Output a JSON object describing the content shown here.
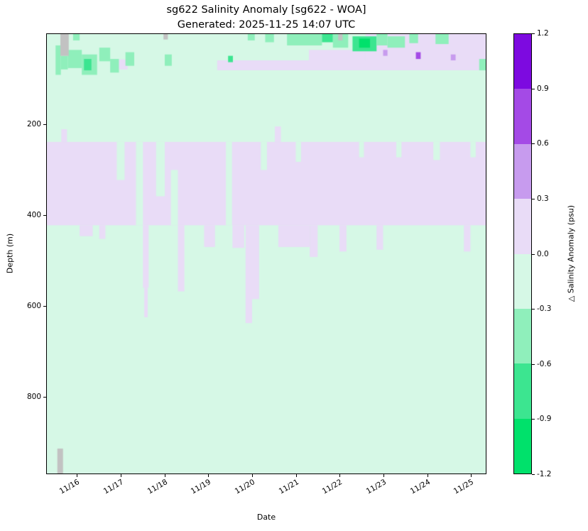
{
  "chart_data": {
    "type": "heatmap",
    "title": "sg622 Salinity Anomaly [sg622 - WOA]",
    "subtitle": "Generated: 2025-11-25 14:07 UTC",
    "xlabel": "Date",
    "ylabel": "Depth (m)",
    "colorbar_label": "△ Salinity Anomaly (psu)",
    "x_tick_labels": [
      "11/16",
      "11/17",
      "11/18",
      "11/19",
      "11/20",
      "11/21",
      "11/22",
      "11/23",
      "11/24",
      "11/25"
    ],
    "x_tick_days": [
      16,
      17,
      18,
      19,
      20,
      21,
      22,
      23,
      24,
      25
    ],
    "x_range": [
      15.3,
      25.35
    ],
    "y_ticks": [
      "200",
      "400",
      "600",
      "800"
    ],
    "depth_range": [
      0,
      970
    ],
    "grid": false,
    "legend_position": "colorbar-right",
    "colorbar_ticks": [
      "1.2",
      "0.9",
      "0.6",
      "0.3",
      "0.0",
      "-0.3",
      "-0.6",
      "-0.9",
      "-1.2"
    ],
    "color_levels": [
      -1.2,
      -0.9,
      -0.6,
      -0.3,
      0,
      0.3,
      0.6,
      0.9,
      1.2
    ],
    "colors": {
      "scale_low_to_high": [
        "#00e16b",
        "#3ce590",
        "#8fefbb",
        "#d6f8e6",
        "#e9dcf7",
        "#c79bee",
        "#a44ae6",
        "#7d0ae0"
      ],
      "missing": "#c2c2c2",
      "spine": "#000000",
      "background": "#ffffff"
    },
    "background_value": -0.1,
    "regions": [
      {
        "x": [
          15.3,
          25.35
        ],
        "d": [
          238,
          422
        ],
        "v": 0.15
      },
      {
        "x": [
          15.63,
          15.76
        ],
        "d": [
          210,
          238
        ],
        "v": 0.15
      },
      {
        "x": [
          20.52,
          20.66
        ],
        "d": [
          204,
          238
        ],
        "v": 0.15
      },
      {
        "x": [
          16.05,
          16.35
        ],
        "d": [
          422,
          446
        ],
        "v": 0.15
      },
      {
        "x": [
          16.5,
          16.64
        ],
        "d": [
          422,
          452
        ],
        "v": 0.15
      },
      {
        "x": [
          17.5,
          17.63
        ],
        "d": [
          422,
          560
        ],
        "v": 0.15
      },
      {
        "x": [
          17.53,
          17.61
        ],
        "d": [
          560,
          625
        ],
        "v": 0.15
      },
      {
        "x": [
          18.3,
          18.45
        ],
        "d": [
          422,
          568
        ],
        "v": 0.15
      },
      {
        "x": [
          18.9,
          19.15
        ],
        "d": [
          422,
          470
        ],
        "v": 0.15
      },
      {
        "x": [
          19.55,
          19.82
        ],
        "d": [
          422,
          472
        ],
        "v": 0.15
      },
      {
        "x": [
          19.85,
          20.0
        ],
        "d": [
          422,
          638
        ],
        "v": 0.15
      },
      {
        "x": [
          20.0,
          20.16
        ],
        "d": [
          422,
          585
        ],
        "v": 0.15
      },
      {
        "x": [
          20.6,
          21.32
        ],
        "d": [
          422,
          470
        ],
        "v": 0.15
      },
      {
        "x": [
          21.32,
          21.5
        ],
        "d": [
          422,
          492
        ],
        "v": 0.15
      },
      {
        "x": [
          22.0,
          22.16
        ],
        "d": [
          422,
          480
        ],
        "v": 0.15
      },
      {
        "x": [
          22.85,
          23.0
        ],
        "d": [
          422,
          476
        ],
        "v": 0.15
      },
      {
        "x": [
          24.85,
          25.0
        ],
        "d": [
          422,
          480
        ],
        "v": 0.15
      },
      {
        "x": [
          16.9,
          17.08
        ],
        "d": [
          238,
          322
        ],
        "v": -0.1
      },
      {
        "x": [
          17.34,
          17.5
        ],
        "d": [
          238,
          422
        ],
        "v": -0.1
      },
      {
        "x": [
          17.8,
          18.0
        ],
        "d": [
          238,
          358
        ],
        "v": -0.1
      },
      {
        "x": [
          18.14,
          18.3
        ],
        "d": [
          300,
          422
        ],
        "v": -0.1
      },
      {
        "x": [
          19.4,
          19.54
        ],
        "d": [
          238,
          422
        ],
        "v": -0.1
      },
      {
        "x": [
          20.2,
          20.34
        ],
        "d": [
          238,
          300
        ],
        "v": -0.1
      },
      {
        "x": [
          21.0,
          21.12
        ],
        "d": [
          238,
          282
        ],
        "v": -0.1
      },
      {
        "x": [
          22.45,
          22.56
        ],
        "d": [
          238,
          272
        ],
        "v": -0.1
      },
      {
        "x": [
          23.3,
          23.42
        ],
        "d": [
          238,
          272
        ],
        "v": -0.1
      },
      {
        "x": [
          24.15,
          24.3
        ],
        "d": [
          238,
          278
        ],
        "v": -0.1
      },
      {
        "x": [
          25.0,
          25.12
        ],
        "d": [
          238,
          272
        ],
        "v": -0.1
      },
      {
        "x": [
          19.2,
          25.35
        ],
        "d": [
          58,
          80
        ],
        "v": 0.15
      },
      {
        "x": [
          16.85,
          17.15
        ],
        "d": [
          56,
          78
        ],
        "v": 0.15
      },
      {
        "x": [
          22.6,
          25.35
        ],
        "d": [
          0,
          58
        ],
        "v": 0.15
      },
      {
        "x": [
          21.3,
          22.6
        ],
        "d": [
          35,
          58
        ],
        "v": 0.15
      },
      {
        "x": [
          15.5,
          15.62
        ],
        "d": [
          25,
          90
        ],
        "v": -0.45
      },
      {
        "x": [
          15.62,
          15.78
        ],
        "d": [
          48,
          78
        ],
        "v": -0.45
      },
      {
        "x": [
          15.78,
          16.1
        ],
        "d": [
          35,
          75
        ],
        "v": -0.45
      },
      {
        "x": [
          15.9,
          16.05
        ],
        "d": [
          0,
          14
        ],
        "v": -0.45
      },
      {
        "x": [
          16.1,
          16.45
        ],
        "d": [
          45,
          90
        ],
        "v": -0.45
      },
      {
        "x": [
          16.15,
          16.32
        ],
        "d": [
          55,
          80
        ],
        "v": -0.75
      },
      {
        "x": [
          16.5,
          16.75
        ],
        "d": [
          30,
          60
        ],
        "v": -0.45
      },
      {
        "x": [
          16.75,
          16.95
        ],
        "d": [
          55,
          85
        ],
        "v": -0.45
      },
      {
        "x": [
          17.1,
          17.3
        ],
        "d": [
          40,
          70
        ],
        "v": -0.45
      },
      {
        "x": [
          18.0,
          18.16
        ],
        "d": [
          45,
          70
        ],
        "v": -0.45
      },
      {
        "x": [
          19.45,
          19.56
        ],
        "d": [
          48,
          62
        ],
        "v": -0.75
      },
      {
        "x": [
          19.9,
          20.06
        ],
        "d": [
          0,
          14
        ],
        "v": -0.45
      },
      {
        "x": [
          20.3,
          20.5
        ],
        "d": [
          0,
          18
        ],
        "v": -0.45
      },
      {
        "x": [
          20.8,
          21.6
        ],
        "d": [
          0,
          25
        ],
        "v": -0.45
      },
      {
        "x": [
          21.6,
          21.85
        ],
        "d": [
          0,
          18
        ],
        "v": -0.75
      },
      {
        "x": [
          21.85,
          22.2
        ],
        "d": [
          0,
          30
        ],
        "v": -0.45
      },
      {
        "x": [
          22.3,
          22.85
        ],
        "d": [
          5,
          38
        ],
        "v": -0.75
      },
      {
        "x": [
          22.45,
          22.7
        ],
        "d": [
          10,
          30
        ],
        "v": -1.05
      },
      {
        "x": [
          22.85,
          23.1
        ],
        "d": [
          0,
          25
        ],
        "v": -0.45
      },
      {
        "x": [
          23.1,
          23.5
        ],
        "d": [
          5,
          30
        ],
        "v": -0.45
      },
      {
        "x": [
          23.6,
          23.8
        ],
        "d": [
          0,
          20
        ],
        "v": -0.45
      },
      {
        "x": [
          24.2,
          24.5
        ],
        "d": [
          0,
          22
        ],
        "v": -0.45
      },
      {
        "x": [
          25.2,
          25.35
        ],
        "d": [
          55,
          80
        ],
        "v": -0.45
      },
      {
        "x": [
          23.75,
          23.86
        ],
        "d": [
          40,
          55
        ],
        "v": 0.75
      },
      {
        "x": [
          24.55,
          24.66
        ],
        "d": [
          45,
          58
        ],
        "v": 0.45
      },
      {
        "x": [
          23.0,
          23.1
        ],
        "d": [
          35,
          48
        ],
        "v": 0.45
      },
      {
        "x": [
          15.61,
          15.8
        ],
        "d": [
          0,
          48
        ],
        "v": null
      },
      {
        "x": [
          15.54,
          15.67
        ],
        "d": [
          915,
          970
        ],
        "v": null
      },
      {
        "x": [
          17.97,
          18.07
        ],
        "d": [
          0,
          12
        ],
        "v": null
      },
      {
        "x": [
          21.97,
          22.07
        ],
        "d": [
          0,
          14
        ],
        "v": null
      }
    ]
  }
}
